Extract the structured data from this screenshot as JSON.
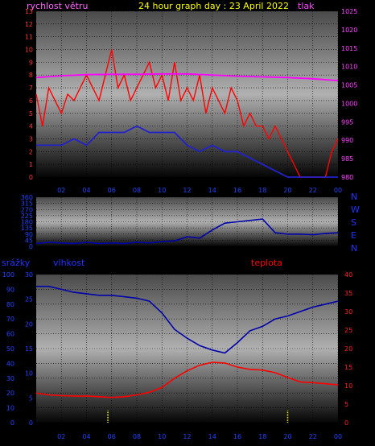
{
  "header": {
    "title": "24 hour graph day : 23 April 2022",
    "wind_label": "rychlost větru",
    "pressure_label": "tlak",
    "title_color": "#ffff00",
    "wind_color": "#ff66ff",
    "pressure_color": "#ff44ff"
  },
  "dir_axis": [
    "N",
    "W",
    "S",
    "E",
    "N"
  ],
  "lower": {
    "rain_label": "srážky",
    "humidity_label": "vlhkost",
    "temperature_label": "teplota"
  },
  "chart_data": [
    {
      "type": "line",
      "name": "wind-pressure",
      "x_ticks": [
        "02",
        "04",
        "06",
        "08",
        "10",
        "12",
        "14",
        "16",
        "18",
        "20",
        "22",
        "00"
      ],
      "y_left_ticks": [
        "0",
        "1",
        "2",
        "3",
        "4",
        "5",
        "6",
        "7",
        "8",
        "9",
        "10",
        "11",
        "12",
        "13"
      ],
      "y_left_range": [
        0,
        13
      ],
      "y_right_ticks": [
        "980",
        "985",
        "990",
        "995",
        "1000",
        "1005",
        "1010",
        "1015",
        "1020",
        "1025"
      ],
      "y_right_range": [
        980,
        1025
      ],
      "series": [
        {
          "role": "gust",
          "color": "#ff0000",
          "x": [
            0,
            0.5,
            1,
            1.5,
            2,
            2.5,
            3,
            3.5,
            4,
            4.5,
            5,
            5.5,
            6,
            6.5,
            7,
            7.5,
            8,
            8.5,
            9,
            9.5,
            10,
            10.5,
            11,
            11.5,
            12,
            12.5,
            13,
            13.5,
            14,
            14.5,
            15,
            15.5,
            16,
            16.5,
            17,
            17.5,
            18,
            18.5,
            19,
            19.5,
            20,
            20.5,
            21,
            21.5,
            22,
            22.5,
            23,
            23.5,
            24
          ],
          "y": [
            6.5,
            4,
            7,
            6,
            5,
            6.5,
            6,
            7,
            8,
            7,
            6,
            8,
            10,
            7,
            8,
            6,
            7,
            8,
            9,
            7,
            8,
            6,
            9,
            6,
            7,
            6,
            8,
            5,
            7,
            6,
            5,
            7,
            6,
            4,
            5,
            4,
            4,
            3,
            4,
            3,
            2,
            1,
            0,
            0,
            0,
            0,
            0,
            2,
            3
          ]
        },
        {
          "role": "average",
          "color": "#2222cc",
          "x": [
            0,
            1,
            2,
            3,
            4,
            5,
            6,
            7,
            8,
            9,
            10,
            11,
            12,
            13,
            14,
            15,
            16,
            17,
            18,
            19,
            20,
            21,
            22,
            23,
            24
          ],
          "y": [
            2.5,
            2.5,
            2.5,
            3,
            2.5,
            3.5,
            3.5,
            3.5,
            4,
            3.5,
            3.5,
            3.5,
            2.5,
            2,
            2.5,
            2,
            2,
            1.5,
            1,
            0.5,
            0,
            0,
            0,
            0,
            0
          ]
        },
        {
          "role": "pressure",
          "color": "#ff00ff",
          "x": [
            0,
            2,
            4,
            6,
            8,
            10,
            12,
            14,
            16,
            18,
            20,
            22,
            24
          ],
          "y": [
            1007,
            1007.5,
            1007.8,
            1007.9,
            1007.9,
            1008,
            1008,
            1007.7,
            1007.4,
            1007.2,
            1007,
            1006.7,
            1006.2
          ]
        }
      ]
    },
    {
      "type": "line",
      "name": "wind-direction",
      "y_ticks": [
        "360",
        "315",
        "270",
        "225",
        "180",
        "135",
        "90",
        "45",
        "0"
      ],
      "y_range": [
        0,
        360
      ],
      "series": [
        {
          "role": "direction",
          "color": "#0000aa",
          "x": [
            0,
            1,
            2,
            3,
            4,
            5,
            6,
            7,
            8,
            9,
            10,
            11,
            12,
            13,
            14,
            15,
            16,
            17,
            18,
            19,
            20,
            21,
            22,
            23,
            24
          ],
          "y": [
            20,
            30,
            25,
            20,
            30,
            20,
            25,
            20,
            30,
            25,
            35,
            40,
            70,
            60,
            120,
            170,
            180,
            190,
            200,
            100,
            90,
            90,
            85,
            95,
            100
          ]
        }
      ]
    },
    {
      "type": "line",
      "name": "humidity-temperature",
      "x_ticks": [
        "02",
        "04",
        "06",
        "08",
        "10",
        "12",
        "14",
        "16",
        "18",
        "20",
        "22",
        "00"
      ],
      "rain_ticks": [
        "0",
        "10",
        "20",
        "30",
        "40",
        "50",
        "60",
        "70",
        "80",
        "90",
        "100"
      ],
      "rain_range": [
        0,
        100
      ],
      "humidity_ticks": [
        "0",
        "5",
        "10",
        "15",
        "20",
        "25",
        "30"
      ],
      "humidity_range": [
        0,
        30
      ],
      "temp_ticks": [
        "0",
        "5",
        "10",
        "15",
        "20",
        "25",
        "30",
        "35",
        "40"
      ],
      "temp_range": [
        0,
        40
      ],
      "series": [
        {
          "role": "humidity",
          "color": "#0000aa",
          "x": [
            0,
            1,
            2,
            3,
            4,
            5,
            6,
            7,
            8,
            9,
            10,
            11,
            12,
            13,
            14,
            15,
            16,
            17,
            18,
            19,
            20,
            21,
            22,
            23,
            24
          ],
          "y": [
            92,
            92,
            90,
            88,
            87,
            86,
            86,
            85,
            84,
            82,
            74,
            63,
            57,
            52,
            49,
            47,
            54,
            62,
            65,
            70,
            72,
            75,
            78,
            80,
            82
          ]
        },
        {
          "role": "temperature",
          "color": "#ff0000",
          "x": [
            0,
            1,
            2,
            3,
            4,
            5,
            6,
            7,
            8,
            9,
            10,
            11,
            12,
            13,
            14,
            15,
            16,
            17,
            18,
            19,
            20,
            21,
            22,
            23,
            24
          ],
          "y": [
            8,
            7.5,
            7.3,
            7.2,
            7.2,
            7,
            6.8,
            7,
            7.5,
            8.2,
            9.5,
            12,
            14,
            15.5,
            16.3,
            16.1,
            15,
            14.4,
            14.2,
            13.5,
            12.2,
            11,
            10.8,
            10.5,
            10.2
          ]
        },
        {
          "role": "rain",
          "color": "#ffff00",
          "x": [
            5.7,
            20
          ],
          "y": [
            8,
            8
          ]
        }
      ]
    }
  ]
}
